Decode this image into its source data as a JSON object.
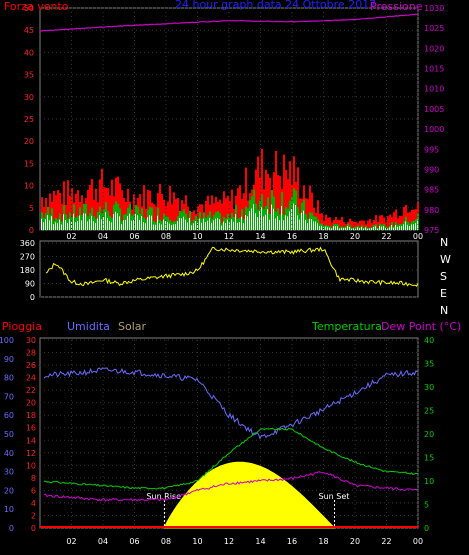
{
  "title": "24 hour graph data  24 Ottobre 2017",
  "colors": {
    "bg": "#000000",
    "wind": "#ff0000",
    "gust_mid": "#00b000",
    "gust_low": "#ffffff",
    "pressure": "#cc00cc",
    "direction": "#ffff00",
    "rain": "#ff0000",
    "humidity": "#6a6aff",
    "solar": "#ffff00",
    "temperature": "#00cc00",
    "dewpoint": "#cc00cc",
    "title": "#2020ff",
    "grid": "#333333"
  },
  "x_ticks": [
    "02",
    "04",
    "06",
    "08",
    "10",
    "12",
    "14",
    "16",
    "18",
    "20",
    "22",
    "00"
  ],
  "chart_data": [
    {
      "type": "line",
      "name": "wind-pressure",
      "labels": {
        "left": "Forza vento",
        "right": "Pressione"
      },
      "y_left": {
        "ticks": [
          0,
          5,
          10,
          15,
          20,
          25,
          30,
          35,
          40,
          45,
          50
        ],
        "ylim": [
          0,
          50
        ]
      },
      "y_right": {
        "ticks": [
          975,
          980,
          985,
          990,
          995,
          1000,
          1005,
          1010,
          1015,
          1020,
          1025,
          1030
        ],
        "ylim": [
          975,
          1030
        ]
      },
      "x_hours": [
        0,
        2,
        4,
        6,
        8,
        10,
        12,
        14,
        16,
        18,
        20,
        22,
        24
      ],
      "series": [
        {
          "key": "pressione",
          "axis": "right",
          "values": [
            1024.3,
            1024.8,
            1025.3,
            1025.7,
            1026.1,
            1026.5,
            1026.9,
            1026.7,
            1026.6,
            1026.8,
            1027.2,
            1027.8,
            1028.5
          ]
        },
        {
          "key": "vento_max",
          "axis": "left",
          "values": [
            8,
            9,
            11,
            8,
            9,
            6,
            7,
            15,
            14,
            3,
            2,
            3,
            8
          ]
        },
        {
          "key": "vento_medio",
          "axis": "left",
          "values": [
            4,
            4,
            5,
            4,
            4,
            3,
            3,
            8,
            7,
            1,
            1,
            1,
            3
          ]
        }
      ]
    },
    {
      "type": "scatter",
      "name": "wind-direction",
      "y_ticks": [
        0,
        90,
        180,
        270,
        360
      ],
      "ylim": [
        0,
        360
      ],
      "compass": [
        "N",
        "W",
        "S",
        "E",
        "N"
      ],
      "x_hours": [
        0,
        1,
        2,
        3,
        4,
        5,
        6,
        7,
        8,
        9,
        10,
        11,
        12,
        13,
        14,
        15,
        16,
        17,
        18,
        19,
        20,
        21,
        22,
        23,
        24
      ],
      "values": [
        105,
        230,
        100,
        85,
        115,
        90,
        110,
        125,
        140,
        150,
        175,
        325,
        315,
        310,
        305,
        300,
        300,
        310,
        320,
        120,
        110,
        100,
        95,
        90,
        85
      ]
    },
    {
      "type": "line",
      "name": "rain-humidity-temperature",
      "labels": {
        "rain": "Pioggia",
        "humidity": "Umidita",
        "solar": "Solar",
        "temperature": "Temperatura",
        "dewpoint": "Dew Point (°C)"
      },
      "y_humidity": {
        "ticks": [
          0,
          10,
          20,
          30,
          40,
          50,
          60,
          70,
          80,
          90,
          100
        ],
        "ylim": [
          0,
          100
        ]
      },
      "y_rain": {
        "ticks": [
          0,
          2,
          4,
          6,
          8,
          10,
          12,
          14,
          16,
          18,
          20,
          22,
          24,
          26,
          28,
          30
        ],
        "ylim": [
          0,
          30
        ]
      },
      "y_temp": {
        "ticks": [
          0,
          5,
          10,
          15,
          20,
          25,
          30,
          35,
          40
        ],
        "ylim": [
          0,
          40
        ]
      },
      "annotations": {
        "sunrise": "Sun Rise",
        "sunset": "Sun Set",
        "sunrise_hour": 7.9,
        "sunset_hour": 18.7
      },
      "x_hours": [
        0,
        2,
        4,
        6,
        8,
        10,
        12,
        14,
        16,
        18,
        20,
        22,
        24
      ],
      "series": [
        {
          "key": "umidita",
          "axis": "humidity",
          "values": [
            81,
            82,
            84,
            83,
            81,
            79,
            60,
            48,
            55,
            63,
            72,
            81,
            83
          ]
        },
        {
          "key": "temperatura",
          "axis": "temp",
          "values": [
            10.0,
            9.5,
            9.0,
            8.5,
            8.5,
            10.0,
            16.0,
            21.0,
            21.0,
            17.0,
            14.0,
            12.0,
            11.5
          ]
        },
        {
          "key": "dew_point",
          "axis": "temp",
          "values": [
            7.0,
            6.5,
            6.0,
            6.0,
            6.0,
            8.0,
            9.5,
            10.0,
            10.5,
            12.0,
            9.0,
            8.5,
            8.0
          ]
        },
        {
          "key": "solar",
          "axis": "rain",
          "values": [
            0,
            0,
            0,
            0,
            0,
            6,
            11,
            11,
            7,
            0,
            0,
            0,
            0
          ]
        },
        {
          "key": "pioggia",
          "axis": "rain",
          "values": [
            0,
            0,
            0,
            0,
            0,
            0,
            0,
            0,
            0,
            0,
            0,
            0,
            0
          ]
        }
      ]
    }
  ]
}
